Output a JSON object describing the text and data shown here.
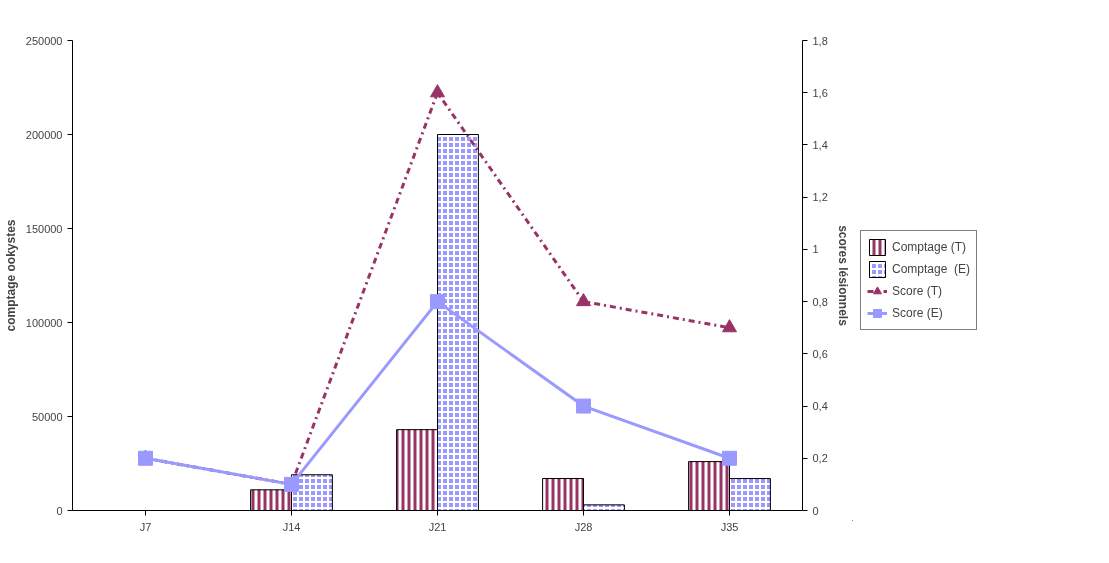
{
  "chart_data": {
    "type": "bar",
    "ylabel": "comptage ookystes",
    "y2label": "scores lésionnels",
    "categories": [
      "J7",
      "J14",
      "J21",
      "J28",
      "J35"
    ],
    "series": [
      {
        "name": "Comptage (T)",
        "color": "#993366",
        "values": [
          null,
          11000,
          43000,
          17000,
          26000
        ]
      },
      {
        "name": "Comptage  (E)",
        "color": "#9999ff",
        "values": [
          null,
          19000,
          200000,
          3000,
          17000
        ]
      },
      {
        "name": "Score (T)",
        "type": "line",
        "axis": "y2",
        "color": "#993366",
        "marker": "triangle",
        "line_style": "dashdot",
        "values": [
          0.2,
          0.1,
          1.6,
          0.8,
          0.7
        ]
      },
      {
        "name": "Score (E)",
        "type": "line",
        "axis": "y2",
        "color": "#9999ff",
        "marker": "square",
        "line_style": "solid",
        "values": [
          0.2,
          0.1,
          0.8,
          0.4,
          0.2
        ]
      }
    ],
    "ylim": [
      0,
      250000
    ],
    "yticks": [
      0,
      50000,
      100000,
      150000,
      200000,
      250000
    ],
    "y2lim": [
      0,
      1.8
    ],
    "y2ticks": [
      0,
      {
        "value": 0.2,
        "label": "0,2"
      },
      {
        "value": 0.4,
        "label": "0,4"
      },
      {
        "value": 0.6,
        "label": "0,6"
      },
      {
        "value": 0.8,
        "label": "0,8"
      },
      1,
      {
        "value": 1.2,
        "label": "1,2"
      },
      {
        "value": 1.4,
        "label": "1,4"
      },
      {
        "value": 1.6,
        "label": "1,6"
      },
      {
        "value": 1.8,
        "label": "1,8"
      }
    ],
    "grid": false,
    "legend": "right"
  }
}
